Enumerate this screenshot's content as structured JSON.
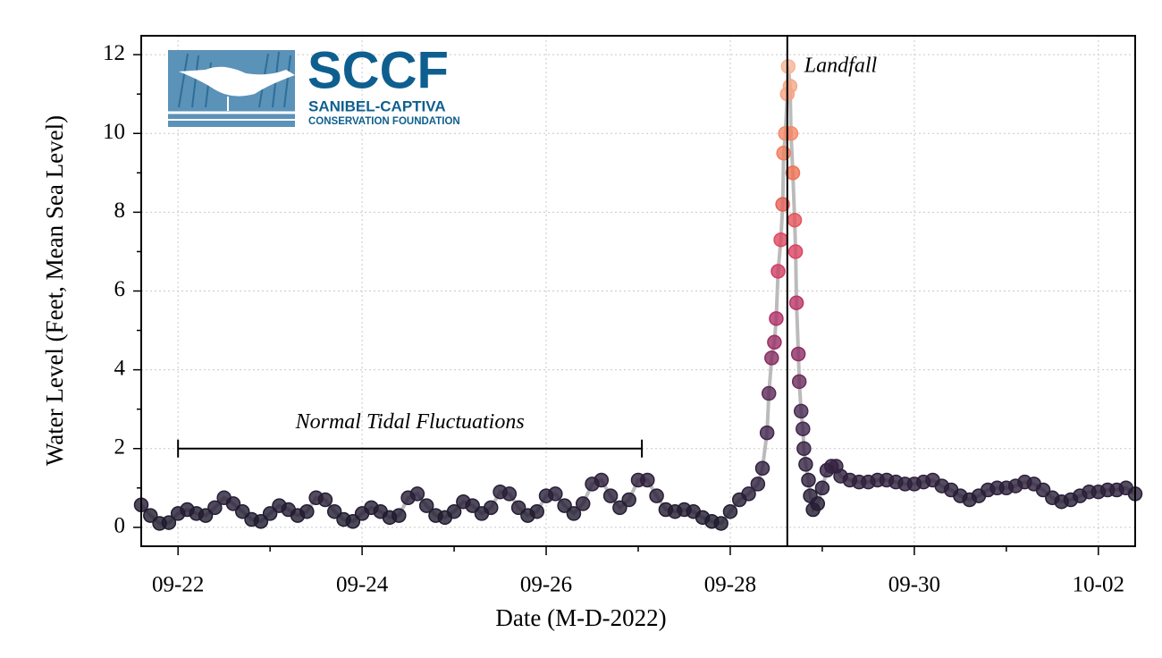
{
  "logo": {
    "name": "SCCF",
    "line1": "SANIBEL-CAPTIVA",
    "line2": "CONSERVATION FOUNDATION"
  },
  "chart_data": {
    "type": "scatter",
    "xlabel": "Date (M-D-2022)",
    "ylabel": "Water Level (Feet, Mean Sea Level)",
    "xlim": [
      21.6,
      32.4
    ],
    "ylim": [
      -0.48,
      12.48
    ],
    "xticks": [
      {
        "value": 22,
        "label": "09-22"
      },
      {
        "value": 24,
        "label": "09-24"
      },
      {
        "value": 26,
        "label": "09-26"
      },
      {
        "value": 28,
        "label": "09-28"
      },
      {
        "value": 30,
        "label": "09-30"
      },
      {
        "value": 32,
        "label": "10-02"
      }
    ],
    "xminorticks": [
      23,
      25,
      27,
      29,
      31
    ],
    "yticks": [
      0,
      2,
      4,
      6,
      8,
      10,
      12
    ],
    "yminorticks": [
      1,
      3,
      5,
      7,
      9,
      11
    ],
    "grid": true,
    "line_color": "#bbbbbb",
    "colorscale": {
      "domain": [
        0,
        3,
        5,
        7,
        9,
        12
      ],
      "colors": [
        "#1c1a2c",
        "#4a2a55",
        "#a8306a",
        "#dc4262",
        "#f07252",
        "#f6bc9c"
      ]
    },
    "x": [
      21.6,
      21.7,
      21.8,
      21.9,
      22.0,
      22.1,
      22.2,
      22.3,
      22.4,
      22.5,
      22.6,
      22.7,
      22.8,
      22.9,
      23.0,
      23.1,
      23.2,
      23.3,
      23.4,
      23.5,
      23.6,
      23.7,
      23.8,
      23.9,
      24.0,
      24.1,
      24.2,
      24.3,
      24.4,
      24.5,
      24.6,
      24.7,
      24.8,
      24.9,
      25.0,
      25.1,
      25.2,
      25.3,
      25.4,
      25.5,
      25.6,
      25.7,
      25.8,
      25.9,
      26.0,
      26.1,
      26.2,
      26.3,
      26.4,
      26.5,
      26.6,
      26.7,
      26.8,
      26.9,
      27.0,
      27.1,
      27.2,
      27.3,
      27.4,
      27.5,
      27.6,
      27.7,
      27.8,
      27.9,
      28.0,
      28.1,
      28.2,
      28.3,
      28.35,
      28.4,
      28.42,
      28.45,
      28.48,
      28.5,
      28.52,
      28.55,
      28.57,
      28.58,
      28.6,
      28.62,
      28.63,
      28.65,
      28.66,
      28.68,
      28.7,
      28.71,
      28.72,
      28.74,
      28.75,
      28.77,
      28.79,
      28.8,
      28.82,
      28.85,
      28.87,
      28.9,
      28.95,
      29.0,
      29.05,
      29.1,
      29.15,
      29.2,
      29.3,
      29.4,
      29.5,
      29.6,
      29.7,
      29.8,
      29.9,
      30.0,
      30.1,
      30.2,
      30.3,
      30.4,
      30.5,
      30.6,
      30.7,
      30.8,
      30.9,
      31.0,
      31.1,
      31.2,
      31.3,
      31.4,
      31.5,
      31.6,
      31.7,
      31.8,
      31.9,
      32.0,
      32.1,
      32.2,
      32.3,
      32.4
    ],
    "values": [
      0.57,
      0.3,
      0.1,
      0.12,
      0.35,
      0.45,
      0.35,
      0.3,
      0.5,
      0.75,
      0.6,
      0.4,
      0.2,
      0.15,
      0.35,
      0.55,
      0.45,
      0.3,
      0.4,
      0.75,
      0.7,
      0.4,
      0.2,
      0.15,
      0.35,
      0.5,
      0.4,
      0.25,
      0.3,
      0.75,
      0.85,
      0.55,
      0.3,
      0.25,
      0.4,
      0.65,
      0.55,
      0.35,
      0.5,
      0.9,
      0.85,
      0.5,
      0.3,
      0.4,
      0.8,
      0.85,
      0.55,
      0.35,
      0.6,
      1.1,
      1.2,
      0.8,
      0.5,
      0.7,
      1.2,
      1.2,
      0.8,
      0.45,
      0.4,
      0.45,
      0.4,
      0.25,
      0.15,
      0.1,
      0.4,
      0.7,
      0.85,
      1.1,
      1.5,
      2.4,
      3.4,
      4.3,
      4.7,
      5.3,
      6.5,
      7.3,
      8.2,
      9.5,
      10.0,
      11.0,
      11.7,
      11.2,
      10.0,
      9.0,
      7.8,
      7.0,
      5.7,
      4.4,
      3.7,
      2.95,
      2.5,
      2.0,
      1.6,
      1.2,
      0.8,
      0.45,
      0.6,
      1.0,
      1.45,
      1.55,
      1.55,
      1.3,
      1.2,
      1.15,
      1.15,
      1.2,
      1.2,
      1.15,
      1.1,
      1.1,
      1.15,
      1.2,
      1.05,
      0.95,
      0.8,
      0.7,
      0.8,
      0.95,
      1.0,
      1.0,
      1.05,
      1.15,
      1.1,
      0.95,
      0.75,
      0.65,
      0.7,
      0.8,
      0.9,
      0.9,
      0.95,
      0.95,
      1.0,
      0.85
    ],
    "landfall": {
      "label": "Landfall",
      "x": 28.62
    },
    "bracket": {
      "label": "Normal Tidal Fluctuations",
      "x": [
        22.0,
        27.04
      ],
      "y": 2.0
    }
  }
}
